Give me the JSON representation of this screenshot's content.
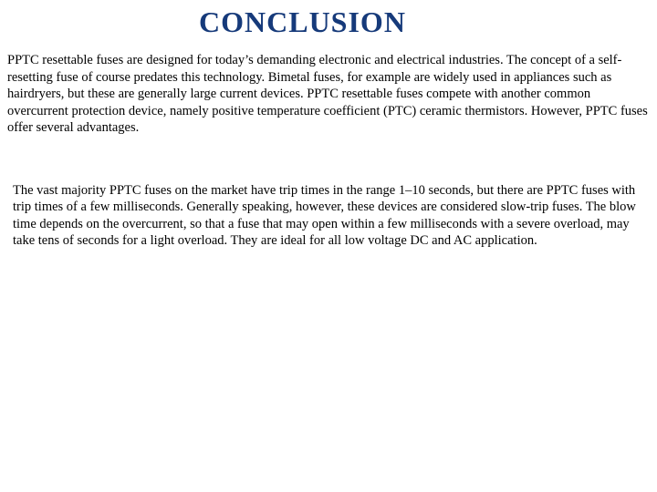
{
  "title": "CONCLUSION",
  "title_color": "#163a7a",
  "title_fontsize": 32,
  "body_color": "#000000",
  "body_fontsize": 14.5,
  "background_color": "#ffffff",
  "paragraphs": {
    "p1": "PPTC resettable fuses are designed for today’s demanding electronic and electrical industries. The concept of a self-resetting fuse of course predates this technology. Bimetal fuses, for example are widely used in appliances such as hairdryers, but these are generally large current devices. PPTC resettable fuses compete with another common overcurrent protection device, namely positive temperature coefficient (PTC) ceramic thermistors. However, PPTC fuses offer several advantages.",
    "p2": "The vast majority PPTC fuses on the market have trip times in the range 1–10 seconds, but there are PPTC fuses with trip times of a few milliseconds. Generally speaking, however, these devices are considered slow-trip fuses. The blow time depends on the overcurrent, so that a fuse that may open within a few milliseconds with a severe overload, may take tens of seconds for a light overload.  They are ideal for all low voltage DC and AC application."
  }
}
